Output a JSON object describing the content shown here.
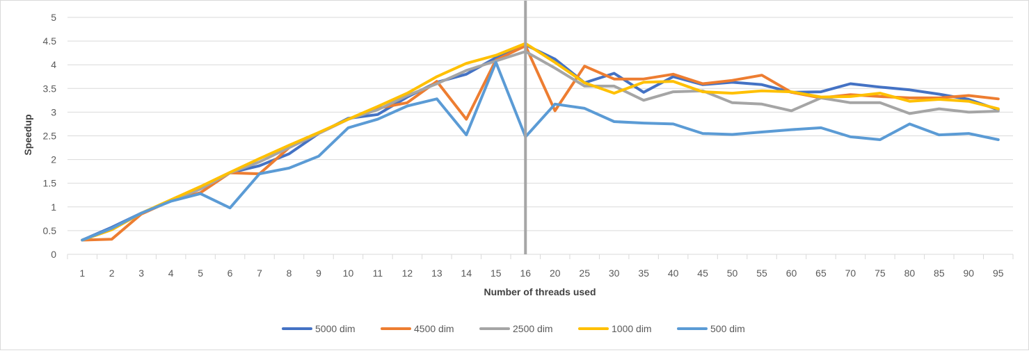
{
  "chart_data": {
    "type": "line",
    "title": "",
    "xlabel": "Number of threads used",
    "ylabel": "Speedup",
    "ylim": [
      0,
      5
    ],
    "yticks": [
      0,
      0.5,
      1,
      1.5,
      2,
      2.5,
      3,
      3.5,
      4,
      4.5,
      5
    ],
    "ytick_labels": [
      "0",
      "0.5",
      "1",
      "1.5",
      "2",
      "2.5",
      "3",
      "3.5",
      "4",
      "4.5",
      "5"
    ],
    "grid": true,
    "legend_position": "bottom",
    "categories": [
      "1",
      "2",
      "3",
      "4",
      "5",
      "6",
      "7",
      "8",
      "9",
      "10",
      "11",
      "12",
      "13",
      "14",
      "15",
      "16",
      "20",
      "25",
      "30",
      "35",
      "40",
      "45",
      "50",
      "55",
      "60",
      "65",
      "70",
      "75",
      "80",
      "85",
      "90",
      "95"
    ],
    "reference_line": {
      "at_category": "16",
      "color": "#a6a6a6"
    },
    "series": [
      {
        "name": "5000 dim",
        "color": "#4472c4",
        "values": [
          0.3,
          0.57,
          0.87,
          1.13,
          1.38,
          1.72,
          1.87,
          2.12,
          2.55,
          2.87,
          2.95,
          3.32,
          3.63,
          3.8,
          4.15,
          4.42,
          4.12,
          3.62,
          3.82,
          3.42,
          3.75,
          3.58,
          3.63,
          3.58,
          3.42,
          3.43,
          3.6,
          3.53,
          3.47,
          3.38,
          3.27,
          3.05
        ]
      },
      {
        "name": "4500 dim",
        "color": "#ed7d31",
        "values": [
          0.3,
          0.32,
          0.85,
          1.13,
          1.3,
          1.72,
          1.7,
          2.25,
          2.55,
          2.85,
          3.08,
          3.2,
          3.65,
          2.85,
          4.1,
          4.4,
          3.03,
          3.97,
          3.7,
          3.7,
          3.8,
          3.6,
          3.67,
          3.78,
          3.42,
          3.3,
          3.37,
          3.33,
          3.3,
          3.3,
          3.35,
          3.28
        ]
      },
      {
        "name": "2500 dim",
        "color": "#a5a5a5",
        "values": [
          0.3,
          0.52,
          0.87,
          1.13,
          1.38,
          1.72,
          1.95,
          2.25,
          2.55,
          2.85,
          3.05,
          3.35,
          3.6,
          3.88,
          4.08,
          4.28,
          3.93,
          3.55,
          3.55,
          3.25,
          3.43,
          3.45,
          3.2,
          3.17,
          3.03,
          3.3,
          3.2,
          3.2,
          2.97,
          3.07,
          3.0,
          3.02
        ]
      },
      {
        "name": "1000 dim",
        "color": "#ffc000",
        "values": [
          0.3,
          0.52,
          0.87,
          1.15,
          1.43,
          1.73,
          2.02,
          2.3,
          2.57,
          2.85,
          3.12,
          3.4,
          3.75,
          4.03,
          4.2,
          4.45,
          4.05,
          3.62,
          3.4,
          3.63,
          3.65,
          3.43,
          3.4,
          3.45,
          3.43,
          3.32,
          3.33,
          3.4,
          3.23,
          3.27,
          3.23,
          3.07
        ]
      },
      {
        "name": "500 dim",
        "color": "#5b9bd5",
        "values": [
          0.3,
          0.55,
          0.87,
          1.12,
          1.28,
          0.98,
          1.7,
          1.82,
          2.07,
          2.67,
          2.85,
          3.13,
          3.28,
          2.52,
          4.05,
          2.48,
          3.17,
          3.08,
          2.8,
          2.77,
          2.75,
          2.55,
          2.53,
          2.58,
          2.63,
          2.67,
          2.48,
          2.42,
          2.75,
          2.52,
          2.55,
          2.42
        ]
      }
    ]
  }
}
